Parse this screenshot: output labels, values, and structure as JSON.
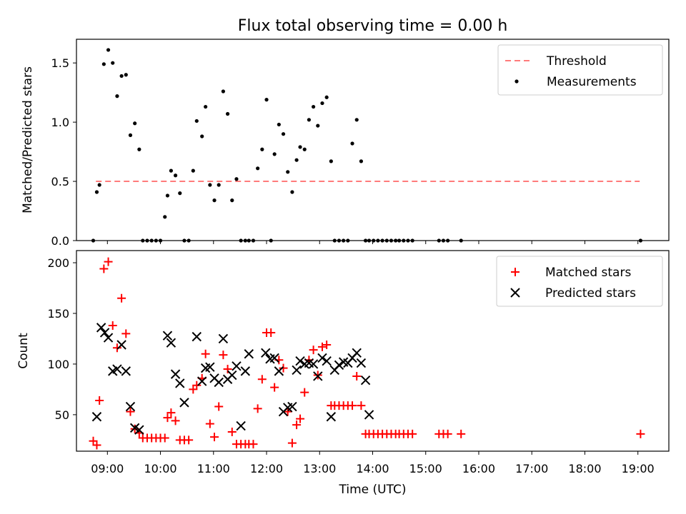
{
  "title": "Flux total observing time = 0.00 h",
  "xlabel": "Time (UTC)",
  "xticks": [
    "09:00",
    "10:00",
    "11:00",
    "12:00",
    "13:00",
    "14:00",
    "15:00",
    "16:00",
    "17:00",
    "18:00",
    "19:00"
  ],
  "chart_data": [
    {
      "type": "scatter",
      "ylabel": "Matched/Predicted stars",
      "xlim": [
        "08:25",
        "19:35"
      ],
      "ylim": [
        0,
        1.7
      ],
      "yticks": [
        "0.0",
        "0.5",
        "1.0",
        "1.5"
      ],
      "legend": {
        "placement": "top-right",
        "entries": [
          "Threshold",
          "Measurements"
        ]
      },
      "threshold": {
        "name": "Threshold",
        "value": 0.5,
        "x_start": "08:47",
        "x_end": "19:02",
        "color": "#ff7b7b",
        "style": "dashed"
      },
      "series": [
        {
          "name": "Measurements",
          "color": "#000000",
          "x": [
            "08:44",
            "08:48",
            "08:51",
            "08:56",
            "09:01",
            "09:06",
            "09:11",
            "09:16",
            "09:21",
            "09:26",
            "09:31",
            "09:36",
            "09:40",
            "09:45",
            "09:50",
            "09:55",
            "10:00",
            "10:05",
            "10:08",
            "10:12",
            "10:17",
            "10:22",
            "10:27",
            "10:32",
            "10:37",
            "10:41",
            "10:47",
            "10:51",
            "10:56",
            "11:01",
            "11:06",
            "11:11",
            "11:16",
            "11:21",
            "11:26",
            "11:31",
            "11:36",
            "11:40",
            "11:45",
            "11:50",
            "11:55",
            "12:00",
            "12:05",
            "12:09",
            "12:14",
            "12:19",
            "12:24",
            "12:29",
            "12:34",
            "12:38",
            "12:43",
            "12:48",
            "12:53",
            "12:58",
            "13:03",
            "13:08",
            "13:13",
            "13:17",
            "13:22",
            "13:27",
            "13:32",
            "13:37",
            "13:42",
            "13:47",
            "13:52",
            "13:56",
            "14:01",
            "14:06",
            "14:11",
            "14:16",
            "14:21",
            "14:26",
            "14:30",
            "14:35",
            "14:40",
            "14:45",
            "15:15",
            "15:20",
            "15:25",
            "15:40",
            "19:03"
          ],
          "y": [
            0,
            0.41,
            0.47,
            1.49,
            1.61,
            1.5,
            1.22,
            1.39,
            1.4,
            0.89,
            0.99,
            0.77,
            0,
            0,
            0,
            0,
            0,
            0.2,
            0.38,
            0.59,
            0.55,
            0.4,
            0,
            0,
            0.59,
            1.01,
            0.88,
            1.13,
            0.47,
            0.34,
            0.47,
            1.26,
            1.07,
            0.34,
            0.52,
            0,
            0,
            0,
            0,
            0.61,
            0.77,
            1.19,
            0,
            0.73,
            0.98,
            0.9,
            0.58,
            0.41,
            0.68,
            0.79,
            0.77,
            1.02,
            1.13,
            0.97,
            1.16,
            1.21,
            0.67,
            0,
            0,
            0,
            0,
            0.82,
            1.02,
            0.67,
            0,
            0,
            0,
            0,
            0,
            0,
            0,
            0,
            0,
            0,
            0,
            0,
            0,
            0,
            0,
            0,
            0
          ]
        }
      ]
    },
    {
      "type": "scatter",
      "ylabel": "Count",
      "xlim": [
        "08:25",
        "19:35"
      ],
      "ylim": [
        14,
        212
      ],
      "yticks": [
        "50",
        "100",
        "150",
        "200"
      ],
      "legend": {
        "placement": "top-right",
        "entries": [
          "Matched stars",
          "Predicted stars"
        ]
      },
      "series": [
        {
          "name": "Matched stars",
          "marker": "plus",
          "color": "#ff0000",
          "x": [
            "08:44",
            "08:48",
            "08:51",
            "08:56",
            "09:01",
            "09:06",
            "09:11",
            "09:16",
            "09:21",
            "09:26",
            "09:31",
            "09:36",
            "09:40",
            "09:45",
            "09:50",
            "09:55",
            "10:00",
            "10:05",
            "10:08",
            "10:12",
            "10:17",
            "10:22",
            "10:27",
            "10:32",
            "10:37",
            "10:41",
            "10:47",
            "10:51",
            "10:56",
            "11:01",
            "11:06",
            "11:11",
            "11:16",
            "11:21",
            "11:26",
            "11:31",
            "11:36",
            "11:40",
            "11:45",
            "11:50",
            "11:55",
            "12:00",
            "12:05",
            "12:09",
            "12:14",
            "12:19",
            "12:24",
            "12:29",
            "12:34",
            "12:38",
            "12:43",
            "12:48",
            "12:53",
            "12:58",
            "13:03",
            "13:08",
            "13:13",
            "13:17",
            "13:22",
            "13:27",
            "13:32",
            "13:37",
            "13:42",
            "13:47",
            "13:52",
            "13:56",
            "14:01",
            "14:06",
            "14:11",
            "14:16",
            "14:21",
            "14:26",
            "14:30",
            "14:35",
            "14:40",
            "14:45",
            "15:15",
            "15:20",
            "15:25",
            "15:40",
            "19:03"
          ],
          "y": [
            24,
            20,
            64,
            194,
            201,
            138,
            116,
            165,
            130,
            53,
            36,
            32,
            27,
            27,
            27,
            27,
            27,
            27,
            47,
            52,
            44,
            25,
            25,
            25,
            75,
            79,
            86,
            110,
            41,
            28,
            58,
            109,
            95,
            33,
            21,
            21,
            21,
            21,
            21,
            56,
            85,
            131,
            131,
            77,
            104,
            96,
            53,
            22,
            40,
            46,
            72,
            104,
            114,
            89,
            117,
            119,
            59,
            59,
            59,
            59,
            59,
            59,
            88,
            59,
            31,
            31,
            31,
            31,
            31,
            31,
            31,
            31,
            31,
            31,
            31,
            31,
            31,
            31,
            31,
            31,
            31
          ]
        },
        {
          "name": "Predicted stars",
          "marker": "x",
          "color": "#000000",
          "x": [
            "08:48",
            "08:53",
            "08:57",
            "09:01",
            "09:06",
            "09:11",
            "09:16",
            "09:21",
            "09:26",
            "09:31",
            "09:36",
            "10:08",
            "10:12",
            "10:17",
            "10:22",
            "10:27",
            "10:41",
            "10:47",
            "10:51",
            "10:56",
            "11:01",
            "11:06",
            "11:11",
            "11:16",
            "11:21",
            "11:26",
            "11:31",
            "11:36",
            "11:40",
            "11:59",
            "12:04",
            "12:09",
            "12:14",
            "12:19",
            "12:24",
            "12:29",
            "12:34",
            "12:38",
            "12:43",
            "12:48",
            "12:53",
            "12:58",
            "13:03",
            "13:08",
            "13:13",
            "13:17",
            "13:22",
            "13:27",
            "13:32",
            "13:37",
            "13:42",
            "13:47",
            "13:52",
            "13:56"
          ],
          "y": [
            48,
            136,
            131,
            126,
            93,
            95,
            119,
            93,
            58,
            37,
            35,
            128,
            121,
            90,
            81,
            62,
            127,
            83,
            96,
            97,
            86,
            82,
            125,
            85,
            89,
            98,
            39,
            93,
            110,
            111,
            105,
            106,
            93,
            53,
            57,
            58,
            94,
            103,
            100,
            101,
            100,
            88,
            106,
            103,
            48,
            94,
            99,
            102,
            101,
            106,
            111,
            101,
            84,
            50
          ]
        }
      ]
    }
  ]
}
